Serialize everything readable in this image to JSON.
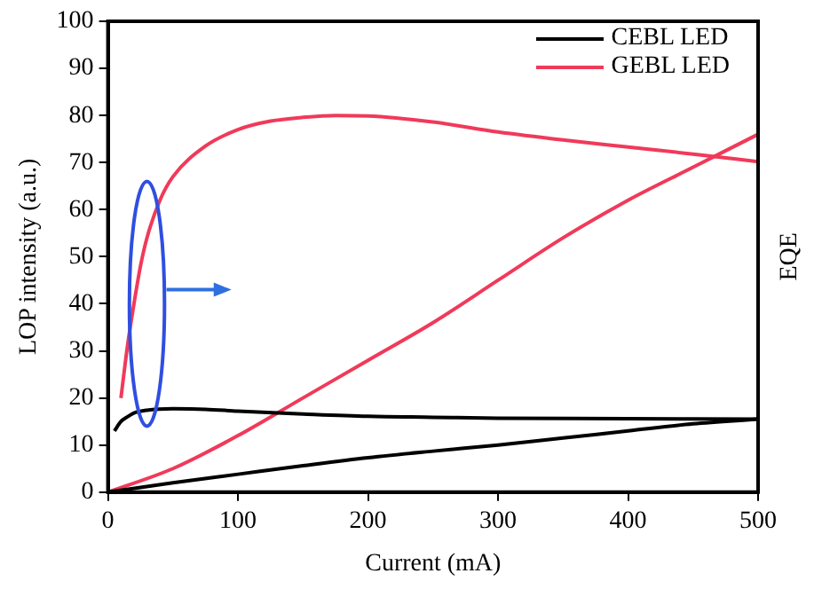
{
  "chart_data": {
    "type": "line",
    "xlabel": "Current (mA)",
    "ylabel": "LOP intensity (a.u.)",
    "y2label": "EQE",
    "xlim": [
      0,
      500
    ],
    "xticks": [
      0,
      100,
      200,
      300,
      400,
      500
    ],
    "ylim": [
      0,
      100
    ],
    "yticks": [
      0,
      10,
      20,
      30,
      40,
      50,
      60,
      70,
      80,
      90,
      100
    ],
    "grid": false,
    "legend": "top right",
    "marker": "none",
    "line_style": "solid",
    "series": [
      {
        "name": "CEBL LED",
        "color": "#000000",
        "x": [
          5,
          10,
          15,
          20,
          30,
          50,
          75,
          100,
          150,
          200,
          250,
          300,
          400,
          500
        ],
        "values": [
          13,
          15,
          16,
          16.8,
          17.4,
          17.7,
          17.6,
          17.2,
          16.6,
          16.1,
          15.9,
          15.7,
          15.6,
          15.5
        ]
      },
      {
        "name": "GEBL LED",
        "color": "#f03a5a",
        "x": [
          10,
          15,
          20,
          25,
          30,
          40,
          50,
          75,
          100,
          125,
          150,
          175,
          200,
          250,
          300,
          350,
          400,
          450,
          500
        ],
        "values": [
          20,
          31,
          40,
          48,
          54,
          62,
          67,
          73.5,
          77,
          78.8,
          79.6,
          80,
          79.9,
          78.6,
          76.5,
          74.8,
          73.3,
          71.8,
          70.2
        ]
      },
      {
        "color": "#000000",
        "x": [
          0,
          50,
          100,
          150,
          200,
          250,
          300,
          350,
          400,
          450,
          500
        ],
        "values": [
          0,
          2,
          3.8,
          5.6,
          7.3,
          8.7,
          10,
          11.5,
          13,
          14.5,
          15.5
        ]
      },
      {
        "color": "#f03a5a",
        "x": [
          0,
          50,
          100,
          150,
          200,
          250,
          300,
          350,
          400,
          450,
          500
        ],
        "values": [
          0,
          5,
          12,
          20,
          28,
          36,
          45,
          54,
          62,
          69,
          76
        ]
      }
    ]
  }
}
